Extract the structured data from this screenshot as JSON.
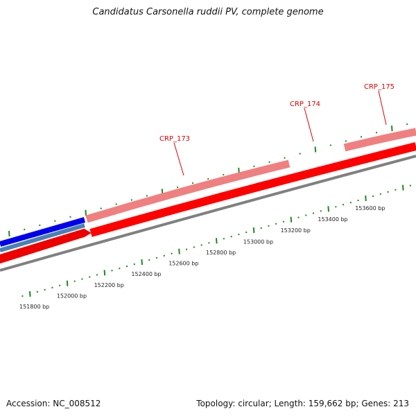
{
  "title": "Candidatus Carsonella ruddii PV, complete genome",
  "accession": "Accession: NC_008512",
  "summary": "Topology: circular; Length: 159,662 bp; Genes: 213",
  "gene_labels": [
    "CRP_173",
    "CRP_174",
    "CRP_175"
  ],
  "bp_labels": [
    "151800 bp",
    "152000 bp",
    "152200 bp",
    "152400 bp",
    "152600 bp",
    "152800 bp",
    "153000 bp",
    "153200 bp",
    "153400 bp",
    "153600 bp"
  ],
  "colors": {
    "forward": "#0000ee",
    "forward_alt": "#4682b4",
    "reverse": "#ff0000",
    "reverse_light": "#f08080",
    "backbone": "#808080",
    "ticks": "#1a8a1a",
    "label": "#e00000"
  }
}
